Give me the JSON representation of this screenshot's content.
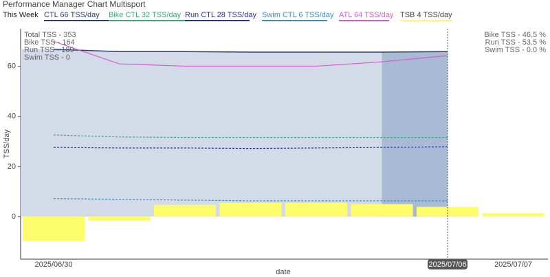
{
  "chart_data": {
    "type": "line",
    "title": "Performance Manager Chart Multisport",
    "period_label": "This Week",
    "x": [
      "2025/06/30",
      null,
      null,
      null,
      null,
      null,
      "2025/07/06",
      "2025/07/07"
    ],
    "highlight_x": "2025/07/06",
    "xlabel": "date",
    "ylabel": "TSS/day",
    "ylim": [
      -17,
      75
    ],
    "yticks": [
      0,
      20,
      40,
      60
    ],
    "series": [
      {
        "name": "CTL  66 TSS/day",
        "color": "#2c3e6e",
        "kind": "area",
        "fill": "#d3dbe8",
        "values": [
          66.8,
          65.9,
          65.9,
          65.7,
          65.7,
          65.7,
          65.9,
          null
        ]
      },
      {
        "name": "Bike CTL  32 TSS/day",
        "color": "#3aaa80",
        "kind": "dashed",
        "values": [
          32.6,
          31.8,
          31.6,
          31.6,
          31.6,
          31.6,
          31.6,
          null
        ]
      },
      {
        "name": "Run CTL  28 TSS/day",
        "color": "#2a2f9e",
        "kind": "dashed",
        "values": [
          27.6,
          27.4,
          27.4,
          27.2,
          27.4,
          27.6,
          27.9,
          null
        ]
      },
      {
        "name": "Swim CTL  6 TSS/day",
        "color": "#3a8fbf",
        "kind": "dashed",
        "values": [
          7.2,
          6.9,
          6.6,
          6.3,
          6.3,
          6.3,
          6.3,
          null
        ]
      },
      {
        "name": "ATL  64 TSS/day",
        "color": "#d85ad0",
        "kind": "line",
        "values": [
          70,
          61,
          60.1,
          60.1,
          60.1,
          61.8,
          64.3,
          null
        ]
      },
      {
        "name": "TSB  4 TSS/day",
        "color": "#fdfd6c",
        "kind": "bar",
        "values": [
          -9.7,
          -1.7,
          4.7,
          5.5,
          5.5,
          5,
          3.9,
          1.4
        ]
      }
    ],
    "annotations_left": [
      "Total TSS - 353",
      "Bike TSS - 164",
      "Run TSS - 189",
      "Swim TSS - 0"
    ],
    "annotations_right": [
      "Bike TSS - 46.5 %",
      "Run TSS - 53.5 %",
      "Swim TSS - 0.0 %"
    ]
  }
}
